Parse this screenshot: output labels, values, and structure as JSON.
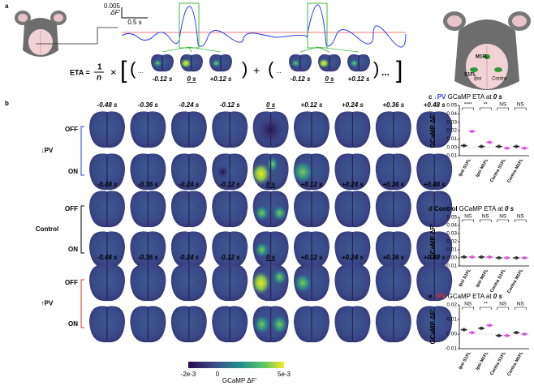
{
  "panel_a": {
    "label": "a",
    "scale_value": "0.005",
    "scale_unit": "ΔF'",
    "scale_time": "0.5 s",
    "eta": "ETA =",
    "numerator": "1",
    "denominator": "n",
    "times": [
      "-0.12 s",
      "0 s",
      "+0.12 s"
    ],
    "ellipsis": "...",
    "plus": "+",
    "regions": [
      "M1FL",
      "S1FL",
      "Ipsi",
      "Contra"
    ]
  },
  "panel_b": {
    "label": "b",
    "times": [
      "-0.48 s",
      "-0.36 s",
      "-0.24 s",
      "-0.12 s",
      "0 s",
      "+0.12 s",
      "+0.24 s",
      "+0.36 s",
      "+0.48 s"
    ],
    "groups": [
      {
        "name": "↓PV",
        "color": "#2b3cf0",
        "rows": [
          "OFF",
          "ON"
        ]
      },
      {
        "name": "Control",
        "color": "#000000",
        "rows": [
          "OFF",
          "ON"
        ]
      },
      {
        "name": "↑PV",
        "color": "#e03127",
        "rows": [
          "OFF",
          "ON"
        ]
      }
    ],
    "colorbar": {
      "min": "-2e-3",
      "zero": "0",
      "max": "5e-3",
      "title": "GCaMP ΔF'"
    }
  },
  "chart_data": [
    {
      "type": "dot",
      "label": "c",
      "title_group": "↓PV",
      "title_group_color": "#2b3cf0",
      "title": "GCaMP ETA at",
      "title_time": "0 s",
      "ylabel": "GCaMP ΔF'",
      "categories": [
        "Ipsi S1FL",
        "Ipsi M1FL",
        "Contra S1FL",
        "Contra M1FL"
      ],
      "significance": [
        "****",
        "**",
        "NS",
        "NS"
      ],
      "ylim": [
        -0.01,
        0.05
      ],
      "yticks": [
        -0.01,
        {
          "value": 0,
          "label": "0.00"
        },
        0.01,
        0.02,
        0.03,
        0.04,
        0.05
      ],
      "series": [
        {
          "name": "OFF",
          "color": "#222222",
          "values": [
            0.002,
            0.001,
            0.001,
            0.001
          ]
        },
        {
          "name": "ON",
          "color": "#d64fd8",
          "values": [
            0.019,
            0.006,
            -0.001,
            -0.001
          ]
        }
      ]
    },
    {
      "type": "dot",
      "label": "d",
      "title_group": "Control",
      "title_group_color": "#000000",
      "title": "GCaMP ETA at",
      "title_time": "0 s",
      "ylabel": "GCaMP ΔF'",
      "categories": [
        "Ipsi S1FL",
        "Ipsi M1FL",
        "Contra S1FL",
        "Contra M1FL"
      ],
      "significance": [
        "NS",
        "NS",
        "NS",
        "NS"
      ],
      "ylim": [
        -0.01,
        0.05
      ],
      "yticks": [
        -0.01,
        {
          "value": 0,
          "label": "0.00"
        },
        0.01,
        0.02,
        0.03,
        0.04,
        0.05
      ],
      "series": [
        {
          "name": "OFF",
          "color": "#222222",
          "values": [
            0.001,
            0.001,
            0.0,
            0.0
          ]
        },
        {
          "name": "ON",
          "color": "#d64fd8",
          "values": [
            0.001,
            0.001,
            0.0,
            0.0
          ]
        }
      ]
    },
    {
      "type": "dot",
      "label": "e",
      "title_group": "↑PV",
      "title_group_color": "#e03127",
      "title": "GCaMP ETA at",
      "title_time": "0 s",
      "ylabel": "GCaMP ΔF'",
      "categories": [
        "Ipsi S1FL",
        "Ipsi M1FL",
        "Contra S1FL",
        "Contra M1FL"
      ],
      "significance": [
        "NS",
        "**",
        "NS",
        "NS"
      ],
      "ylim": [
        -0.01,
        0.02
      ],
      "yticks": [
        -0.01,
        {
          "value": 0,
          "label": "0.00"
        },
        0.01,
        0.02
      ],
      "series": [
        {
          "name": "OFF",
          "color": "#222222",
          "values": [
            0.003,
            0.004,
            -0.001,
            0.001
          ]
        },
        {
          "name": "ON",
          "color": "#d64fd8",
          "values": [
            0.001,
            0.006,
            -0.001,
            0.0
          ]
        }
      ]
    }
  ]
}
